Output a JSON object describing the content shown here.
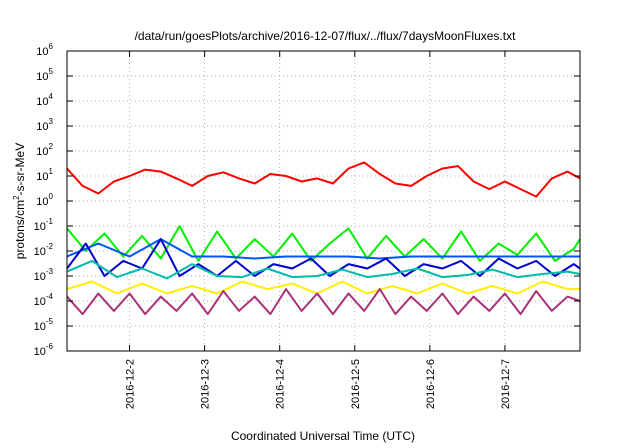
{
  "chart_data": {
    "type": "line",
    "title": "/data/run/goesPlots/archive/2016-12-07/flux/../flux/7daysMoonFluxes.txt",
    "xlabel": "Coordinated Universal Time (UTC)",
    "ylabel_main": "protons/cm",
    "ylabel_sup": "2",
    "ylabel_tail": "-s-sr-MeV",
    "y_scale": "log",
    "ylim": [
      1e-06,
      1000000.0
    ],
    "y_ticks": [
      {
        "base": "10",
        "exp": "-6"
      },
      {
        "base": "10",
        "exp": "-5"
      },
      {
        "base": "10",
        "exp": "-4"
      },
      {
        "base": "10",
        "exp": "-3"
      },
      {
        "base": "10",
        "exp": "-2"
      },
      {
        "base": "10",
        "exp": "-1"
      },
      {
        "base": "10",
        "exp": "0"
      },
      {
        "base": "10",
        "exp": "1"
      },
      {
        "base": "10",
        "exp": "2"
      },
      {
        "base": "10",
        "exp": "3"
      },
      {
        "base": "10",
        "exp": "4"
      },
      {
        "base": "10",
        "exp": "5"
      },
      {
        "base": "10",
        "exp": "6"
      }
    ],
    "x_range": [
      "2016-12-01T04:00",
      "2016-12-08T00:00"
    ],
    "x_ticks": [
      "2016-12-2",
      "2016-12-3",
      "2016-12-4",
      "2016-12-5",
      "2016-12-6",
      "2016-12-7"
    ],
    "x_tick_dates": [
      "2016-12-02",
      "2016-12-03",
      "2016-12-04",
      "2016-12-05",
      "2016-12-06",
      "2016-12-07"
    ],
    "grid": true,
    "series": [
      {
        "color": "#ff0000",
        "x": [
          "2016-12-01T04:00",
          "2016-12-01T09:00",
          "2016-12-01T14:00",
          "2016-12-01T19:00",
          "2016-12-02T00:00",
          "2016-12-02T05:00",
          "2016-12-02T10:00",
          "2016-12-02T15:00",
          "2016-12-02T20:00",
          "2016-12-03T01:00",
          "2016-12-03T06:00",
          "2016-12-03T11:00",
          "2016-12-03T16:00",
          "2016-12-03T21:00",
          "2016-12-04T02:00",
          "2016-12-04T07:00",
          "2016-12-04T12:00",
          "2016-12-04T17:00",
          "2016-12-04T22:00",
          "2016-12-05T03:00",
          "2016-12-05T08:00",
          "2016-12-05T13:00",
          "2016-12-05T18:00",
          "2016-12-05T23:00",
          "2016-12-06T04:00",
          "2016-12-06T09:00",
          "2016-12-06T14:00",
          "2016-12-06T19:00",
          "2016-12-07T00:00",
          "2016-12-07T05:00",
          "2016-12-07T10:00",
          "2016-12-07T15:00",
          "2016-12-07T20:00",
          "2016-12-08T00:00"
        ],
        "values": [
          20,
          4,
          2,
          6,
          10,
          18,
          15,
          8,
          4,
          10,
          14,
          8,
          5,
          12,
          10,
          6,
          8,
          5,
          20,
          35,
          12,
          5,
          4,
          10,
          20,
          25,
          6,
          3,
          6,
          3,
          1.5,
          8,
          15,
          8
        ]
      },
      {
        "color": "#00ee00",
        "x": [
          "2016-12-01T04:00",
          "2016-12-01T10:00",
          "2016-12-01T16:00",
          "2016-12-01T22:00",
          "2016-12-02T04:00",
          "2016-12-02T10:00",
          "2016-12-02T16:00",
          "2016-12-02T22:00",
          "2016-12-03T04:00",
          "2016-12-03T10:00",
          "2016-12-03T16:00",
          "2016-12-03T22:00",
          "2016-12-04T04:00",
          "2016-12-04T10:00",
          "2016-12-04T16:00",
          "2016-12-04T22:00",
          "2016-12-05T04:00",
          "2016-12-05T10:00",
          "2016-12-05T16:00",
          "2016-12-05T22:00",
          "2016-12-06T04:00",
          "2016-12-06T10:00",
          "2016-12-06T16:00",
          "2016-12-06T22:00",
          "2016-12-07T04:00",
          "2016-12-07T10:00",
          "2016-12-07T16:00",
          "2016-12-07T22:00",
          "2016-12-08T00:00"
        ],
        "values": [
          0.08,
          0.01,
          0.05,
          0.006,
          0.04,
          0.005,
          0.1,
          0.004,
          0.06,
          0.005,
          0.03,
          0.006,
          0.05,
          0.004,
          0.02,
          0.08,
          0.005,
          0.04,
          0.006,
          0.03,
          0.005,
          0.06,
          0.004,
          0.02,
          0.007,
          0.05,
          0.004,
          0.012,
          0.03
        ]
      },
      {
        "color": "#0055ff",
        "x": [
          "2016-12-01T04:00",
          "2016-12-01T14:00",
          "2016-12-02T00:00",
          "2016-12-02T10:00",
          "2016-12-02T20:00",
          "2016-12-03T06:00",
          "2016-12-03T16:00",
          "2016-12-04T02:00",
          "2016-12-04T12:00",
          "2016-12-04T22:00",
          "2016-12-05T08:00",
          "2016-12-05T18:00",
          "2016-12-06T04:00",
          "2016-12-06T14:00",
          "2016-12-07T00:00",
          "2016-12-07T10:00",
          "2016-12-07T20:00",
          "2016-12-08T00:00"
        ],
        "values": [
          0.006,
          0.02,
          0.006,
          0.03,
          0.006,
          0.006,
          0.005,
          0.006,
          0.006,
          0.006,
          0.005,
          0.006,
          0.006,
          0.006,
          0.006,
          0.006,
          0.006,
          0.006
        ]
      },
      {
        "color": "#0000cc",
        "x": [
          "2016-12-01T04:00",
          "2016-12-01T10:00",
          "2016-12-01T16:00",
          "2016-12-01T22:00",
          "2016-12-02T04:00",
          "2016-12-02T10:00",
          "2016-12-02T16:00",
          "2016-12-02T22:00",
          "2016-12-03T04:00",
          "2016-12-03T10:00",
          "2016-12-03T16:00",
          "2016-12-03T22:00",
          "2016-12-04T04:00",
          "2016-12-04T10:00",
          "2016-12-04T16:00",
          "2016-12-04T22:00",
          "2016-12-05T04:00",
          "2016-12-05T10:00",
          "2016-12-05T16:00",
          "2016-12-05T22:00",
          "2016-12-06T04:00",
          "2016-12-06T10:00",
          "2016-12-06T16:00",
          "2016-12-06T22:00",
          "2016-12-07T04:00",
          "2016-12-07T10:00",
          "2016-12-07T16:00",
          "2016-12-07T22:00",
          "2016-12-08T00:00"
        ],
        "values": [
          0.002,
          0.02,
          0.001,
          0.004,
          0.002,
          0.03,
          0.001,
          0.003,
          0.001,
          0.004,
          0.001,
          0.003,
          0.002,
          0.005,
          0.001,
          0.003,
          0.002,
          0.005,
          0.001,
          0.003,
          0.002,
          0.004,
          0.001,
          0.005,
          0.002,
          0.004,
          0.001,
          0.003,
          0.002
        ]
      },
      {
        "color": "#00bbaa",
        "x": [
          "2016-12-01T04:00",
          "2016-12-01T12:00",
          "2016-12-01T20:00",
          "2016-12-02T04:00",
          "2016-12-02T12:00",
          "2016-12-02T20:00",
          "2016-12-03T04:00",
          "2016-12-03T12:00",
          "2016-12-03T20:00",
          "2016-12-04T04:00",
          "2016-12-04T12:00",
          "2016-12-04T20:00",
          "2016-12-05T04:00",
          "2016-12-05T12:00",
          "2016-12-05T20:00",
          "2016-12-06T04:00",
          "2016-12-06T12:00",
          "2016-12-06T20:00",
          "2016-12-07T04:00",
          "2016-12-07T12:00",
          "2016-12-07T20:00",
          "2016-12-08T00:00"
        ],
        "values": [
          0.0015,
          0.004,
          0.0009,
          0.002,
          0.0008,
          0.003,
          0.001,
          0.0009,
          0.002,
          0.0009,
          0.001,
          0.0018,
          0.0009,
          0.0012,
          0.002,
          0.0009,
          0.0011,
          0.0018,
          0.0009,
          0.0012,
          0.0015,
          0.0012
        ]
      },
      {
        "color": "#ffee00",
        "x": [
          "2016-12-01T04:00",
          "2016-12-01T12:00",
          "2016-12-01T20:00",
          "2016-12-02T04:00",
          "2016-12-02T12:00",
          "2016-12-02T20:00",
          "2016-12-03T04:00",
          "2016-12-03T12:00",
          "2016-12-03T20:00",
          "2016-12-04T04:00",
          "2016-12-04T12:00",
          "2016-12-04T20:00",
          "2016-12-05T04:00",
          "2016-12-05T12:00",
          "2016-12-05T20:00",
          "2016-12-06T04:00",
          "2016-12-06T12:00",
          "2016-12-06T20:00",
          "2016-12-07T04:00",
          "2016-12-07T12:00",
          "2016-12-07T20:00",
          "2016-12-08T00:00"
        ],
        "values": [
          0.0003,
          0.0006,
          0.0002,
          0.0005,
          0.0002,
          0.0004,
          0.0002,
          0.0006,
          0.0003,
          0.0005,
          0.0002,
          0.0006,
          0.0002,
          0.0004,
          0.0002,
          0.0005,
          0.0002,
          0.0004,
          0.0002,
          0.0006,
          0.0003,
          0.0003
        ]
      },
      {
        "color": "#aa3377",
        "x": [
          "2016-12-01T04:00",
          "2016-12-01T09:00",
          "2016-12-01T14:00",
          "2016-12-01T19:00",
          "2016-12-02T00:00",
          "2016-12-02T05:00",
          "2016-12-02T10:00",
          "2016-12-02T15:00",
          "2016-12-02T20:00",
          "2016-12-03T01:00",
          "2016-12-03T06:00",
          "2016-12-03T11:00",
          "2016-12-03T16:00",
          "2016-12-03T21:00",
          "2016-12-04T02:00",
          "2016-12-04T07:00",
          "2016-12-04T12:00",
          "2016-12-04T17:00",
          "2016-12-04T22:00",
          "2016-12-05T03:00",
          "2016-12-05T08:00",
          "2016-12-05T13:00",
          "2016-12-05T18:00",
          "2016-12-05T23:00",
          "2016-12-06T04:00",
          "2016-12-06T09:00",
          "2016-12-06T14:00",
          "2016-12-06T19:00",
          "2016-12-07T00:00",
          "2016-12-07T05:00",
          "2016-12-07T10:00",
          "2016-12-07T15:00",
          "2016-12-07T20:00",
          "2016-12-08T00:00"
        ],
        "values": [
          0.00015,
          3e-05,
          0.0002,
          4e-05,
          0.0002,
          3e-05,
          0.00015,
          4e-05,
          0.0002,
          3e-05,
          0.00025,
          4e-05,
          0.00015,
          3e-05,
          0.0003,
          4e-05,
          0.0002,
          3e-05,
          0.0002,
          4e-05,
          0.0003,
          3e-05,
          0.00015,
          4e-05,
          0.0002,
          3e-05,
          0.00015,
          4e-05,
          0.0002,
          3e-05,
          0.00025,
          4e-05,
          0.00015,
          0.0001
        ]
      }
    ]
  }
}
